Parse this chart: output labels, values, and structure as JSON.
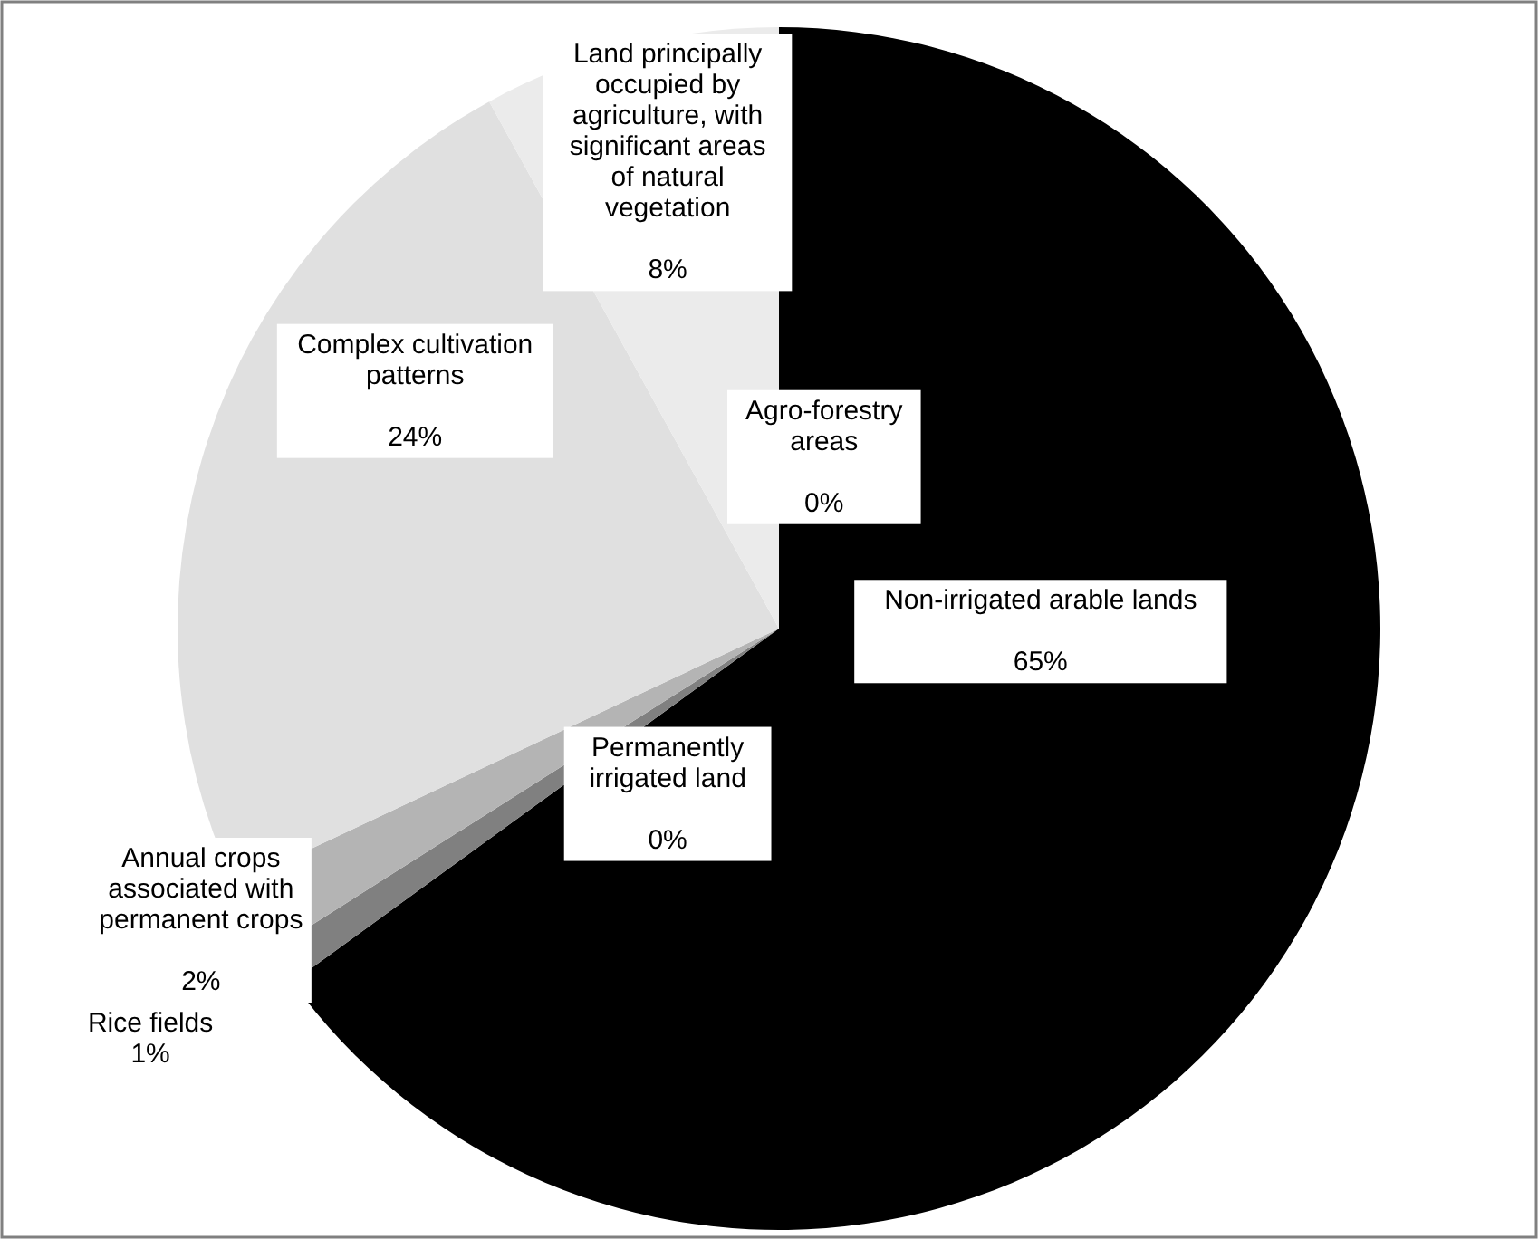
{
  "chart_data": {
    "type": "pie",
    "categories": [
      "Non-irrigated arable lands",
      "Permanently irrigated land",
      "Rice fields",
      "Annual crops associated with permanent crops",
      "Complex cultivation patterns",
      "Land principally occupied by agriculture, with significant areas of natural vegetation",
      "Agro-forestry areas"
    ],
    "values": [
      65,
      0,
      1,
      2,
      24,
      8,
      0
    ],
    "value_labels": [
      "65%",
      "0%",
      "1%",
      "2%",
      "24%",
      "8%",
      "0%"
    ],
    "colors": [
      "#000000",
      "#555555",
      "#808080",
      "#b4b4b4",
      "#e0e0e0",
      "#ebebeb",
      "#f5f5f5"
    ],
    "legend": false
  }
}
